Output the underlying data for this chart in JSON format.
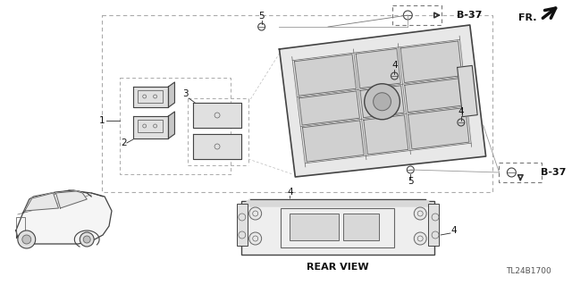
{
  "bg_color": "#ffffff",
  "line_color": "#2a2a2a",
  "diagram_code": "TL24B1700",
  "rear_view_label": "REAR VIEW",
  "fr_label": "FR.",
  "b37_label": "B-37",
  "label_color": "#111111",
  "gray1": "#444444",
  "gray2": "#666666",
  "gray3": "#999999",
  "gray_light": "#cccccc",
  "dashes": [
    4,
    3
  ]
}
